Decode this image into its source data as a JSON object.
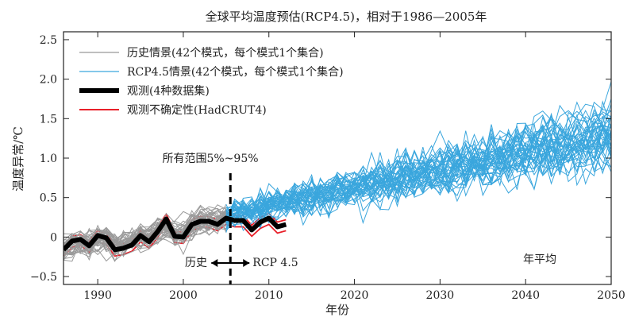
{
  "chart_data": {
    "type": "line",
    "title": "全球平均温度预估(RCP4.5)，相对于1986—2005年",
    "xlabel": "年份",
    "ylabel": "温度异常/℃",
    "xlim": [
      1986,
      2050
    ],
    "ylim": [
      -0.6,
      2.6
    ],
    "xticks": [
      1990,
      2000,
      2010,
      2020,
      2030,
      2040,
      2050
    ],
    "yticks": [
      -0.5,
      0,
      0.5,
      1.0,
      1.5,
      2.0,
      2.5
    ],
    "ytick_labels": [
      "−0.5",
      "0",
      "0.5",
      "1.0",
      "1.5",
      "2.0",
      "2.5"
    ],
    "grid": false,
    "legend_position": "top-left",
    "legend": [
      {
        "label": "历史情景(42个模式，每个模式1个集合)",
        "color": "#999999"
      },
      {
        "label": "RCP4.5情景(42个模式，每个模式1个集合)",
        "color": "#3aa6dd"
      },
      {
        "label": "观测(4种数据集)",
        "color": "#000000"
      },
      {
        "label": "观测不确定性(HadCRUT4)",
        "color": "#e8202a"
      }
    ],
    "annotations": {
      "range": "所有范围5%~95%",
      "history": "历史",
      "rcp": "RCP 4.5",
      "annual": "年平均"
    },
    "divider_year": 2005.5,
    "observed": {
      "x": [
        1986,
        1987,
        1988,
        1989,
        1990,
        1991,
        1992,
        1993,
        1994,
        1995,
        1996,
        1997,
        1998,
        1999,
        2000,
        2001,
        2002,
        2003,
        2004,
        2005,
        2006,
        2007,
        2008,
        2009,
        2010,
        2011,
        2012
      ],
      "y": [
        -0.16,
        -0.05,
        -0.03,
        -0.11,
        0.02,
        -0.01,
        -0.16,
        -0.14,
        -0.1,
        0.02,
        -0.06,
        0.07,
        0.23,
        0.01,
        0.0,
        0.16,
        0.2,
        0.2,
        0.16,
        0.24,
        0.21,
        0.21,
        0.09,
        0.19,
        0.24,
        0.13,
        0.16
      ]
    },
    "uncertainty_band": {
      "x": [
        1986,
        1987,
        1988,
        1989,
        1990,
        1991,
        1992,
        1993,
        1994,
        1995,
        1996,
        1997,
        1998,
        1999,
        2000,
        2001,
        2002,
        2003,
        2004,
        2005,
        2006,
        2007,
        2008,
        2009,
        2010,
        2011,
        2012
      ],
      "upper": [
        -0.1,
        0.01,
        0.03,
        -0.05,
        0.08,
        0.05,
        -0.1,
        -0.08,
        -0.04,
        0.08,
        0.0,
        0.13,
        0.29,
        0.07,
        0.06,
        0.22,
        0.26,
        0.26,
        0.22,
        0.3,
        0.27,
        0.27,
        0.15,
        0.25,
        0.3,
        0.19,
        0.22
      ],
      "lower": [
        -0.24,
        -0.13,
        -0.11,
        -0.19,
        -0.06,
        -0.09,
        -0.24,
        -0.22,
        -0.18,
        -0.06,
        -0.14,
        -0.01,
        0.15,
        -0.07,
        -0.08,
        0.08,
        0.12,
        0.12,
        0.08,
        0.16,
        0.13,
        0.13,
        0.01,
        0.11,
        0.16,
        0.05,
        0.08
      ]
    },
    "historical_ensemble": {
      "members": 42,
      "x_start": 1986,
      "x_end": 2005,
      "mean": [
        -0.18,
        -0.12,
        -0.08,
        -0.12,
        -0.04,
        -0.02,
        -0.12,
        -0.1,
        -0.06,
        0.0,
        0.0,
        0.06,
        0.12,
        0.06,
        0.06,
        0.14,
        0.18,
        0.2,
        0.22,
        0.26
      ],
      "spread": 0.16
    },
    "rcp45_ensemble": {
      "members": 42,
      "x_start": 2005,
      "x_end": 2050,
      "mean_start": 0.28,
      "mean_end": 1.3,
      "spread": 0.28
    }
  }
}
